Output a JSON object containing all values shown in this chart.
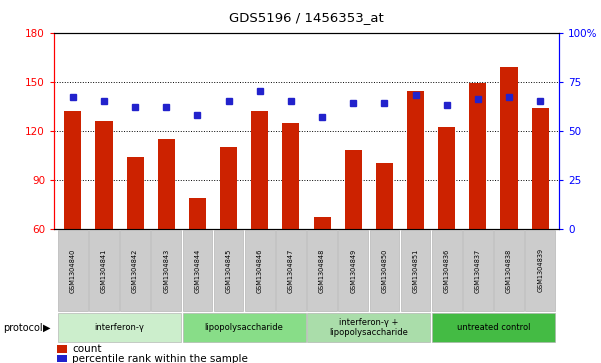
{
  "title": "GDS5196 / 1456353_at",
  "samples": [
    "GSM1304840",
    "GSM1304841",
    "GSM1304842",
    "GSM1304843",
    "GSM1304844",
    "GSM1304845",
    "GSM1304846",
    "GSM1304847",
    "GSM1304848",
    "GSM1304849",
    "GSM1304850",
    "GSM1304851",
    "GSM1304836",
    "GSM1304837",
    "GSM1304838",
    "GSM1304839"
  ],
  "counts": [
    132,
    126,
    104,
    115,
    79,
    110,
    132,
    125,
    67,
    108,
    100,
    144,
    122,
    149,
    159,
    134
  ],
  "percentiles": [
    67,
    65,
    62,
    62,
    58,
    65,
    70,
    65,
    57,
    64,
    64,
    68,
    63,
    66,
    67,
    65
  ],
  "groups": [
    {
      "label": "interferon-γ",
      "start": 0,
      "end": 3,
      "color": "#cceecc"
    },
    {
      "label": "lipopolysaccharide",
      "start": 4,
      "end": 7,
      "color": "#88dd88"
    },
    {
      "label": "interferon-γ +\nlipopolysaccharide",
      "start": 8,
      "end": 11,
      "color": "#aaddaa"
    },
    {
      "label": "untreated control",
      "start": 12,
      "end": 15,
      "color": "#44bb44"
    }
  ],
  "ylim_left": [
    60,
    180
  ],
  "ylim_right": [
    0,
    100
  ],
  "bar_color": "#cc2200",
  "dot_color": "#2222cc",
  "bg_color": "#ffffff",
  "label_bg": "#cccccc",
  "yticks_left": [
    60,
    90,
    120,
    150,
    180
  ],
  "yticks_right": [
    0,
    25,
    50,
    75,
    100
  ],
  "legend_count": "count",
  "legend_pct": "percentile rank within the sample"
}
